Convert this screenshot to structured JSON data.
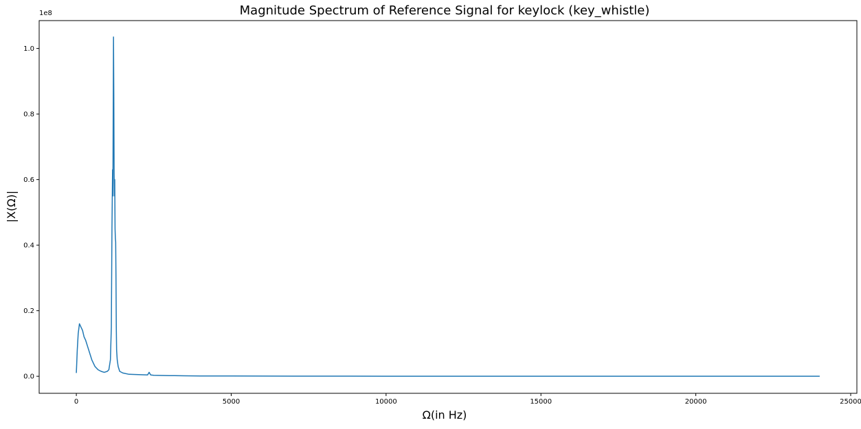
{
  "chart_data": {
    "type": "line",
    "title": "Magnitude Spectrum of Reference Signal for keylock (key_whistle)",
    "xlabel": "Ω(in Hz)",
    "ylabel": "|X(Ω)|",
    "y_offset_label": "1e8",
    "xlim": [
      -1200,
      25200
    ],
    "ylim": [
      -0.052,
      1.085
    ],
    "x_ticks": [
      0,
      5000,
      10000,
      15000,
      20000,
      25000
    ],
    "x_tick_labels": [
      "0",
      "5000",
      "10000",
      "15000",
      "20000",
      "25000"
    ],
    "y_ticks": [
      0.0,
      0.2,
      0.4,
      0.6,
      0.8,
      1.0
    ],
    "y_tick_labels": [
      "0.0",
      "0.2",
      "0.4",
      "0.6",
      "0.8",
      "1.0"
    ],
    "grid": false,
    "legend": "none",
    "series": [
      {
        "color": "#1f77b4",
        "x": [
          0,
          30,
          60,
          100,
          150,
          200,
          250,
          300,
          350,
          400,
          450,
          500,
          550,
          600,
          700,
          800,
          900,
          1000,
          1050,
          1100,
          1130,
          1150,
          1170,
          1180,
          1190,
          1200,
          1210,
          1220,
          1230,
          1240,
          1250,
          1260,
          1270,
          1280,
          1290,
          1300,
          1320,
          1350,
          1400,
          1500,
          1700,
          2000,
          2300,
          2350,
          2400,
          2500,
          3000,
          3500,
          4000,
          5000,
          6000,
          7000,
          8000,
          10000,
          12000,
          15000,
          20000,
          24000
        ],
        "y": [
          0.01,
          0.08,
          0.13,
          0.16,
          0.15,
          0.14,
          0.12,
          0.11,
          0.095,
          0.08,
          0.065,
          0.05,
          0.04,
          0.03,
          0.02,
          0.015,
          0.012,
          0.015,
          0.02,
          0.05,
          0.15,
          0.45,
          0.63,
          0.55,
          0.8,
          1.035,
          0.86,
          0.62,
          0.55,
          0.6,
          0.45,
          0.42,
          0.41,
          0.3,
          0.15,
          0.08,
          0.05,
          0.03,
          0.015,
          0.01,
          0.006,
          0.005,
          0.004,
          0.012,
          0.004,
          0.003,
          0.002,
          0.0015,
          0.001,
          0.0008,
          0.0005,
          0.0004,
          0.0003,
          0.0002,
          0.0001,
          0.0001,
          0.0001,
          0.0
        ]
      }
    ]
  }
}
